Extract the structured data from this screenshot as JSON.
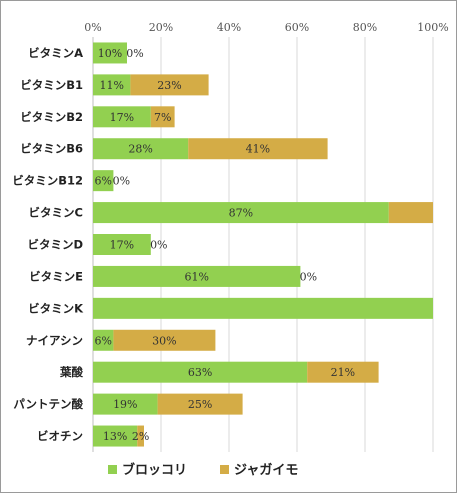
{
  "chart_data": {
    "type": "bar",
    "orientation": "horizontal",
    "stacked": true,
    "xlim": [
      0,
      100
    ],
    "x_ticks": [
      "0%",
      "20%",
      "40%",
      "60%",
      "80%",
      "100%"
    ],
    "grid": true,
    "legend_position": "bottom",
    "categories": [
      "ビタミンA",
      "ビタミンB1",
      "ビタミンB2",
      "ビタミンB6",
      "ビタミンB12",
      "ビタミンC",
      "ビタミンD",
      "ビタミンE",
      "ビタミンK",
      "ナイアシン",
      "葉酸",
      "パントテン酸",
      "ビオチン"
    ],
    "series": [
      {
        "name": "ブロッコリ",
        "color": "#92d050",
        "values": [
          10,
          11,
          17,
          28,
          6,
          87,
          17,
          61,
          100,
          6,
          63,
          19,
          13
        ],
        "labels": [
          "10%",
          "11%",
          "17%",
          "28%",
          "6%",
          "87%",
          "17%",
          "61%",
          "",
          "6%",
          "63%",
          "19%",
          "13%"
        ]
      },
      {
        "name": "ジャガイモ",
        "color": "#d4ac46",
        "values": [
          0,
          23,
          7,
          41,
          0,
          13,
          0,
          0,
          0,
          30,
          21,
          25,
          2
        ],
        "labels": [
          "0%",
          "23%",
          "7%",
          "41%",
          "0%",
          "",
          "0%",
          "0%",
          "",
          "30%",
          "21%",
          "25%",
          "2%"
        ]
      }
    ]
  }
}
